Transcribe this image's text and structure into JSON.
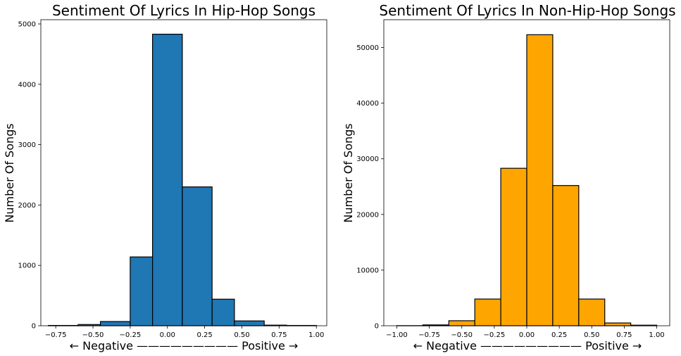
{
  "chart_data": [
    {
      "type": "bar",
      "title": "Sentiment Of Lyrics In Hip-Hop Songs",
      "xlabel": "← Negative ————————— Positive →",
      "ylabel": "Number Of Songs",
      "color": "#1f77b4",
      "xlim": [
        -0.85,
        1.07
      ],
      "ylim": [
        0,
        5070
      ],
      "xticks": [
        -0.75,
        -0.5,
        -0.25,
        0.0,
        0.25,
        0.5,
        0.75,
        1.0
      ],
      "xtick_labels": [
        "−0.75",
        "−0.50",
        "−0.25",
        "0.00",
        "0.25",
        "0.50",
        "0.75",
        "1.00"
      ],
      "yticks": [
        0,
        1000,
        2000,
        3000,
        4000,
        5000
      ],
      "ytick_labels": [
        "0",
        "1000",
        "2000",
        "3000",
        "4000",
        "5000"
      ],
      "bin_edges": [
        -0.8,
        -0.6,
        -0.45,
        -0.25,
        -0.1,
        0.1,
        0.3,
        0.45,
        0.65,
        0.8,
        1.0
      ],
      "values": [
        5,
        20,
        70,
        1140,
        4830,
        2300,
        440,
        80,
        10,
        5
      ]
    },
    {
      "type": "bar",
      "title": "Sentiment Of Lyrics In Non-Hip-Hop Songs",
      "xlabel": "← Negative ————————— Positive →",
      "ylabel": "Number Of Songs",
      "color": "#ffa500",
      "xlim": [
        -1.1,
        1.1
      ],
      "ylim": [
        0,
        55000
      ],
      "xticks": [
        -1.0,
        -0.75,
        -0.5,
        -0.25,
        0.0,
        0.25,
        0.5,
        0.75,
        1.0
      ],
      "xtick_labels": [
        "−1.00",
        "−0.75",
        "−0.50",
        "−0.25",
        "0.00",
        "0.25",
        "0.50",
        "0.75",
        "1.00"
      ],
      "yticks": [
        0,
        10000,
        20000,
        30000,
        40000,
        50000
      ],
      "ytick_labels": [
        "0",
        "10000",
        "20000",
        "30000",
        "40000",
        "50000"
      ],
      "bin_edges": [
        -1.0,
        -0.8,
        -0.6,
        -0.4,
        -0.2,
        0.0,
        0.2,
        0.4,
        0.6,
        0.8,
        1.0
      ],
      "values": [
        20,
        150,
        900,
        4800,
        28300,
        52300,
        25200,
        4800,
        500,
        100
      ]
    }
  ]
}
